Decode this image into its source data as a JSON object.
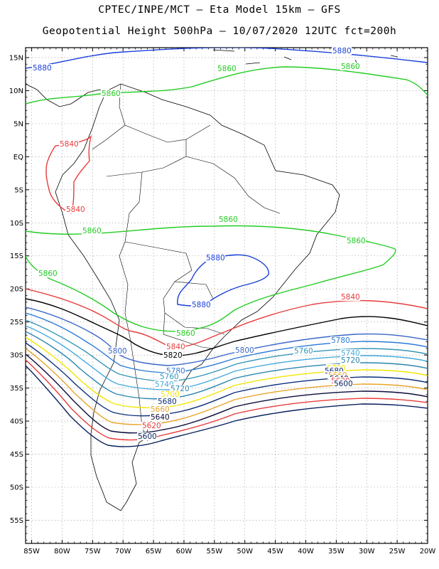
{
  "header": {
    "line1": "CPTEC/INPE/MCT –  Eta Model 15km – GFS",
    "line2": "Geopotential Height 500hPa – 10/07/2020 12UTC fct=200h"
  },
  "map": {
    "lon_range": [
      -86,
      -20
    ],
    "lat_range": [
      -58.5,
      16.5
    ],
    "lat_ticks": [
      "15N",
      "10N",
      "5N",
      "EQ",
      "5S",
      "10S",
      "15S",
      "20S",
      "25S",
      "30S",
      "35S",
      "40S",
      "45S",
      "50S",
      "55S"
    ],
    "lon_ticks": [
      "85W",
      "80W",
      "75W",
      "70W",
      "65W",
      "60W",
      "55W",
      "50W",
      "45W",
      "40W",
      "35W",
      "30W",
      "25W",
      "20W"
    ],
    "gridlines": true
  },
  "contours": [
    {
      "level": "5880",
      "color": "#1a3fd9"
    },
    {
      "level": "5860",
      "color": "#22cc22"
    },
    {
      "level": "5840",
      "color": "#e83b3b"
    },
    {
      "level": "5820",
      "color": "#000000"
    },
    {
      "level": "5800",
      "color": "#3a66c8"
    },
    {
      "level": "5780",
      "color": "#2c7ad6"
    },
    {
      "level": "5760",
      "color": "#3596b8"
    },
    {
      "level": "5740",
      "color": "#44aadd"
    },
    {
      "level": "5720",
      "color": "#2b86b0"
    },
    {
      "level": "5700",
      "color": "#f2e600"
    },
    {
      "level": "5680",
      "color": "#0b2f7a"
    },
    {
      "level": "5660",
      "color": "#e8a42a"
    },
    {
      "level": "5640",
      "color": "#0a0a3a"
    },
    {
      "level": "5620",
      "color": "#e83b3b"
    },
    {
      "level": "5600",
      "color": "#08205e"
    }
  ]
}
